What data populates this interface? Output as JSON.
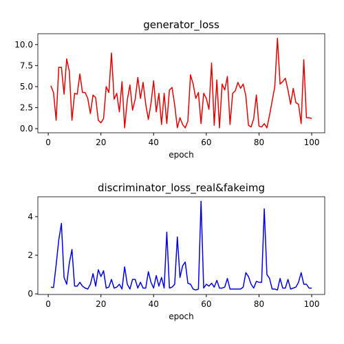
{
  "chart_data": [
    {
      "type": "line",
      "title": "generator_loss",
      "xlabel": "epoch",
      "x": [
        1,
        2,
        3,
        4,
        5,
        6,
        7,
        8,
        9,
        10,
        11,
        12,
        13,
        14,
        15,
        16,
        17,
        18,
        19,
        20,
        21,
        22,
        23,
        24,
        25,
        26,
        27,
        28,
        29,
        30,
        31,
        32,
        33,
        34,
        35,
        36,
        37,
        38,
        39,
        40,
        41,
        42,
        43,
        44,
        45,
        46,
        47,
        48,
        49,
        50,
        51,
        52,
        53,
        54,
        55,
        56,
        57,
        58,
        59,
        60,
        61,
        62,
        63,
        64,
        65,
        66,
        67,
        68,
        69,
        70,
        71,
        72,
        73,
        74,
        75,
        76,
        77,
        78,
        79,
        80,
        81,
        82,
        83,
        84,
        85,
        86,
        87,
        88,
        89,
        90,
        91,
        92,
        93,
        94,
        95,
        96,
        97,
        98,
        99,
        100
      ],
      "series": [
        {
          "name": "generator_loss",
          "color": "#e00000",
          "values": [
            5.1,
            4.3,
            1.0,
            7.3,
            7.3,
            4.1,
            8.3,
            6.8,
            1.0,
            4.2,
            4.1,
            6.5,
            4.3,
            4.3,
            3.6,
            1.8,
            4.0,
            3.7,
            1.0,
            0.7,
            1.2,
            5.0,
            4.3,
            9.0,
            3.5,
            4.2,
            2.0,
            5.6,
            0.1,
            3.4,
            5.2,
            2.2,
            3.5,
            6.1,
            3.6,
            5.5,
            2.9,
            1.1,
            3.0,
            5.7,
            2.0,
            4.2,
            0.5,
            4.2,
            0.6,
            4.6,
            4.9,
            2.8,
            0.1,
            1.3,
            0.5,
            0.1,
            0.9,
            6.4,
            5.3,
            3.6,
            4.3,
            0.6,
            4.2,
            3.6,
            2.3,
            7.8,
            0.4,
            5.8,
            0.1,
            5.3,
            4.6,
            6.2,
            0.5,
            4.2,
            4.5,
            5.5,
            4.8,
            5.3,
            3.9,
            0.4,
            0.2,
            1.2,
            4.0,
            0.3,
            0.2,
            0.6,
            0.1,
            1.6,
            3.3,
            5.0,
            10.75,
            5.3,
            5.6,
            6.0,
            4.6,
            2.9,
            4.8,
            3.1,
            2.9,
            0.6,
            8.2,
            1.3,
            1.3,
            1.2
          ]
        }
      ],
      "xlim": [
        -3.95,
        104.95
      ],
      "xticks": [
        0,
        20,
        40,
        60,
        80,
        100
      ],
      "ylim": [
        -0.49,
        11.29
      ],
      "yticks": [
        {
          "value": 0,
          "label": "0.0"
        },
        {
          "value": 2.5,
          "label": "2.5"
        },
        {
          "value": 5,
          "label": "5.0"
        },
        {
          "value": 7.5,
          "label": "7.5"
        },
        {
          "value": 10,
          "label": "10.0"
        }
      ]
    },
    {
      "type": "line",
      "title": "discriminator_loss_real&fakeimg",
      "xlabel": "epoch",
      "x": [
        1,
        2,
        3,
        4,
        5,
        6,
        7,
        8,
        9,
        10,
        11,
        12,
        13,
        14,
        15,
        16,
        17,
        18,
        19,
        20,
        21,
        22,
        23,
        24,
        25,
        26,
        27,
        28,
        29,
        30,
        31,
        32,
        33,
        34,
        35,
        36,
        37,
        38,
        39,
        40,
        41,
        42,
        43,
        44,
        45,
        46,
        47,
        48,
        49,
        50,
        51,
        52,
        53,
        54,
        55,
        56,
        57,
        58,
        59,
        60,
        61,
        62,
        63,
        64,
        65,
        66,
        67,
        68,
        69,
        70,
        71,
        72,
        73,
        74,
        75,
        76,
        77,
        78,
        79,
        80,
        81,
        82,
        83,
        84,
        85,
        86,
        87,
        88,
        89,
        90,
        91,
        92,
        93,
        94,
        95,
        96,
        97,
        98,
        99,
        100
      ],
      "series": [
        {
          "name": "discriminator_loss_real&fakeimg",
          "color": "#0000e0",
          "values": [
            0.35,
            0.33,
            1.5,
            2.8,
            3.65,
            0.85,
            0.5,
            1.6,
            2.3,
            0.4,
            0.4,
            0.6,
            0.4,
            0.3,
            0.25,
            0.5,
            1.05,
            0.4,
            1.25,
            0.9,
            1.2,
            0.3,
            0.35,
            0.75,
            0.3,
            0.35,
            0.5,
            0.25,
            1.4,
            0.5,
            0.25,
            0.75,
            0.75,
            0.3,
            0.6,
            0.3,
            0.3,
            1.15,
            0.6,
            0.3,
            0.95,
            0.4,
            0.85,
            0.3,
            3.2,
            0.3,
            0.35,
            0.5,
            2.95,
            0.85,
            1.45,
            1.65,
            0.55,
            0.5,
            0.25,
            0.2,
            0.25,
            4.8,
            0.3,
            0.5,
            0.4,
            0.55,
            0.35,
            0.7,
            0.3,
            0.3,
            0.35,
            0.8,
            0.25,
            0.25,
            0.25,
            0.25,
            0.25,
            0.35,
            1.1,
            0.9,
            0.5,
            0.3,
            0.65,
            0.6,
            0.6,
            4.4,
            1.0,
            0.8,
            0.25,
            0.25,
            0.2,
            0.8,
            0.3,
            0.3,
            0.75,
            0.25,
            0.3,
            0.35,
            0.6,
            1.1,
            0.5,
            0.5,
            0.3,
            0.3
          ]
        }
      ],
      "xlim": [
        -3.95,
        104.95
      ],
      "xticks": [
        0,
        20,
        40,
        60,
        80,
        100
      ],
      "ylim": [
        -0.03,
        5.03
      ],
      "yticks": [
        0,
        2,
        4
      ]
    }
  ]
}
